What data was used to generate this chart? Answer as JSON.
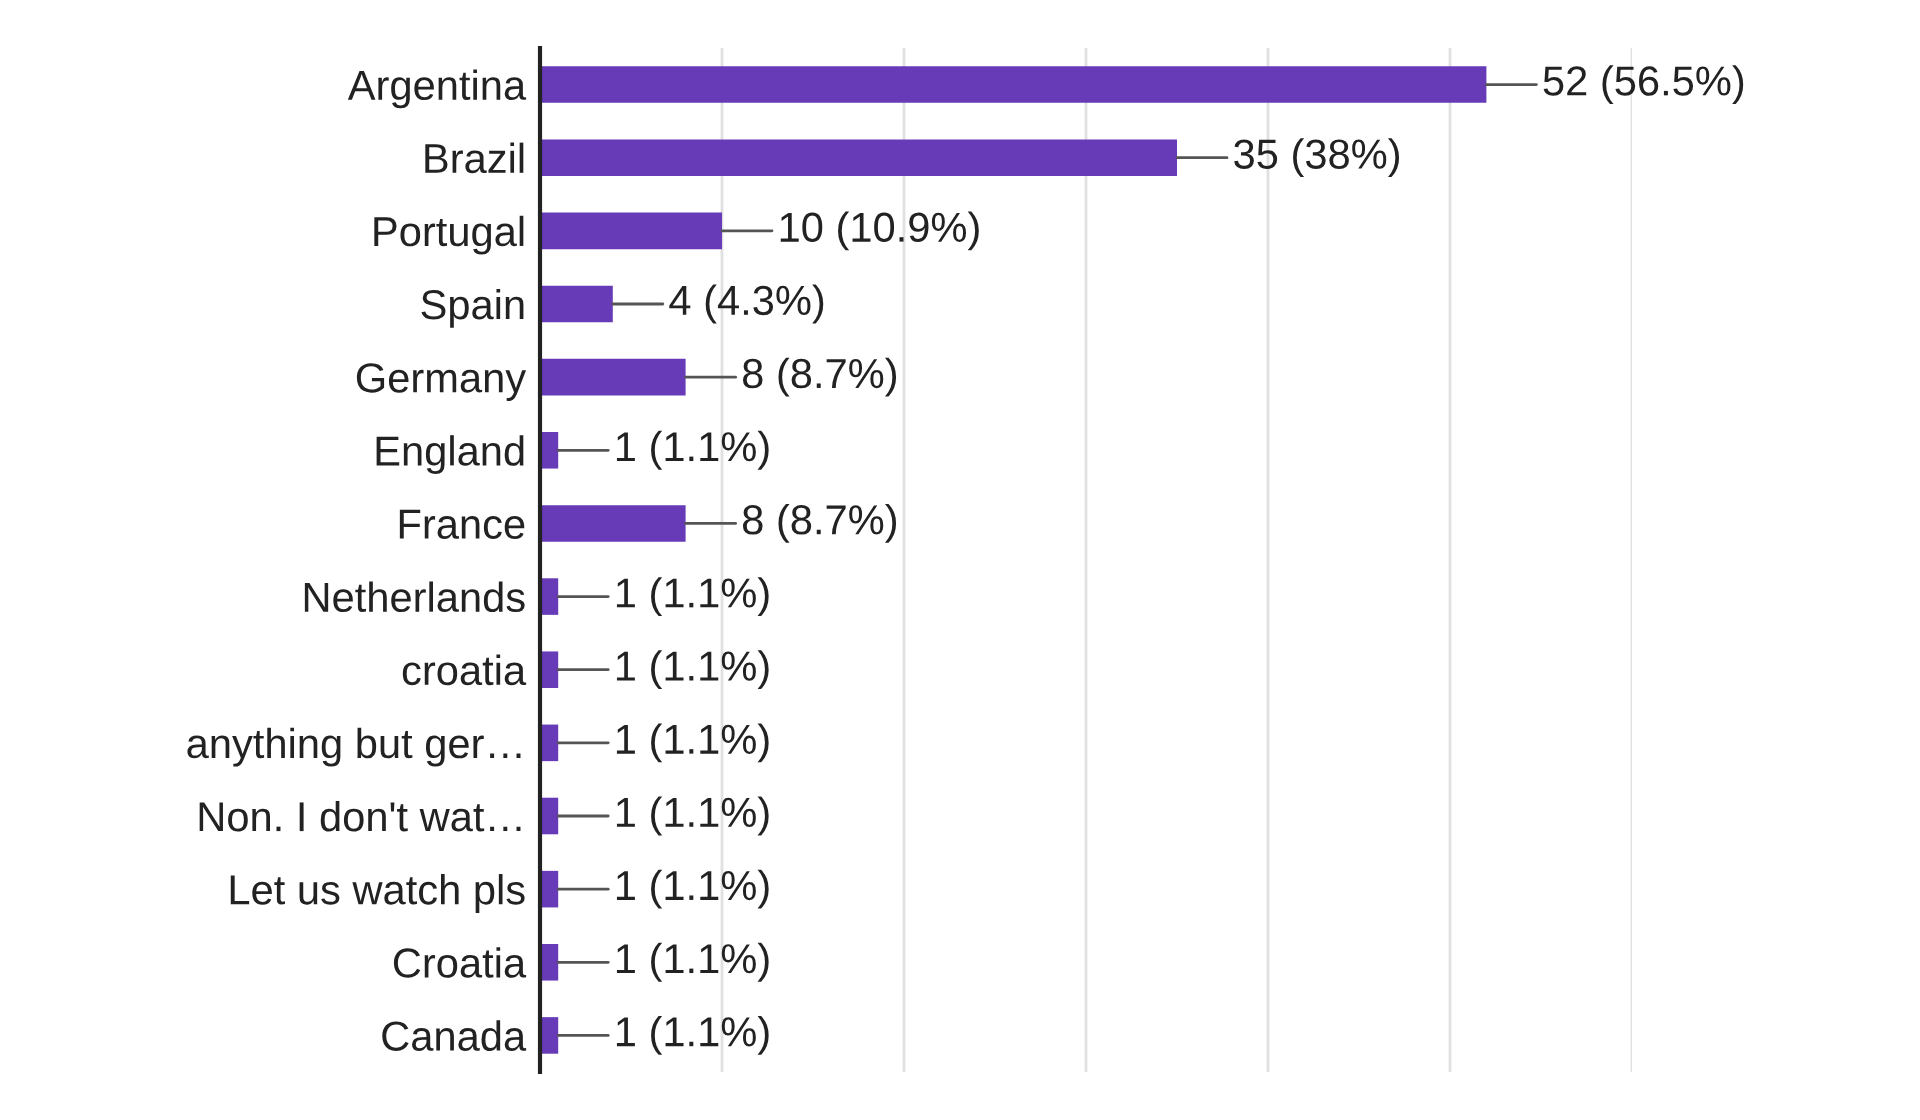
{
  "chart_data": {
    "type": "bar",
    "orientation": "horizontal",
    "categories": [
      "Argentina",
      "Brazil",
      "Portugal",
      "Spain",
      "Germany",
      "England",
      "France",
      "Netherlands",
      "croatia",
      "anything but ger…",
      "Non. I don't wat…",
      "Let us watch pls",
      "Croatia",
      "Canada"
    ],
    "values": [
      52,
      35,
      10,
      4,
      8,
      1,
      8,
      1,
      1,
      1,
      1,
      1,
      1,
      1
    ],
    "value_labels": [
      "52 (56.5%)",
      "35 (38%)",
      "10 (10.9%)",
      "4 (4.3%)",
      "8 (8.7%)",
      "1 (1.1%)",
      "8 (8.7%)",
      "1 (1.1%)",
      "1 (1.1%)",
      "1 (1.1%)",
      "1 (1.1%)",
      "1 (1.1%)",
      "1 (1.1%)",
      "1 (1.1%)"
    ],
    "color": "#673ab7",
    "xlim": [
      0,
      60
    ],
    "xticks": [
      {
        "value": 10,
        "label": null
      },
      {
        "value": 20,
        "label": null
      },
      {
        "value": 30,
        "label": null
      },
      {
        "value": 40,
        "label": null
      },
      {
        "value": 50,
        "label": null
      },
      {
        "value": 60,
        "label": null
      }
    ],
    "grid": "x",
    "tick_labels": "y",
    "legend": false
  }
}
